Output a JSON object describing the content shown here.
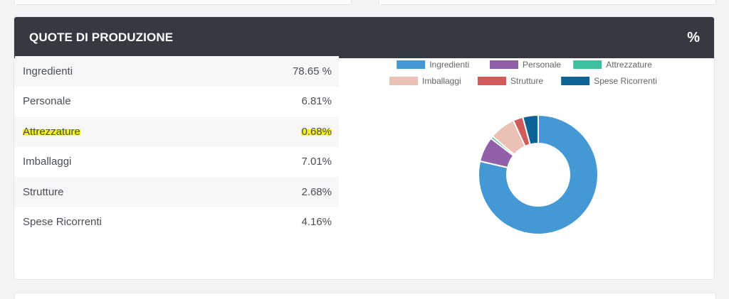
{
  "panel": {
    "title": "QUOTE DI PRODUZIONE",
    "icon_label": "%"
  },
  "rows": [
    {
      "label": "Ingredienti",
      "value": "78.65 %",
      "highlighted": false
    },
    {
      "label": "Personale",
      "value": "6.81%",
      "highlighted": false
    },
    {
      "label": "Attrezzature",
      "value": "0.68%",
      "highlighted": true
    },
    {
      "label": "Imballaggi",
      "value": "7.01%",
      "highlighted": false
    },
    {
      "label": "Strutture",
      "value": "2.68%",
      "highlighted": false
    },
    {
      "label": "Spese Ricorrenti",
      "value": "4.16%",
      "highlighted": false
    }
  ],
  "chart_data": {
    "type": "pie",
    "variant": "doughnut",
    "legend_position": "top",
    "categories": [
      "Ingredienti",
      "Personale",
      "Attrezzature",
      "Imballaggi",
      "Strutture",
      "Spese Ricorrenti"
    ],
    "values": [
      78.65,
      6.81,
      0.68,
      7.01,
      2.68,
      4.16
    ],
    "colors": [
      "#4499d4",
      "#9160a8",
      "#3fbfa0",
      "#ebc1b7",
      "#d25a5b",
      "#0f6296"
    ]
  },
  "colors": {
    "header_bg": "#353a40",
    "highlight": "#f4ef2a"
  }
}
